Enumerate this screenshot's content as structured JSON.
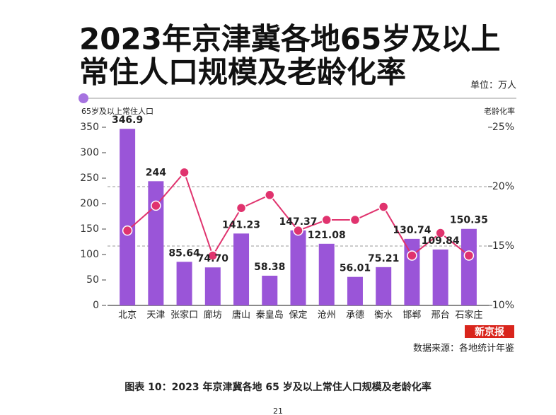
{
  "chart_data": {
    "type": "bar-line",
    "title": [
      "2023年京津冀各地65岁及以上",
      "常住人口规模及老龄化率"
    ],
    "unit": "单位：万人",
    "ylabel": "65岁及以上常住人口",
    "y2label": "老龄化率",
    "categories": [
      "北京",
      "天津",
      "张家口",
      "廊坊",
      "唐山",
      "秦皇岛",
      "保定",
      "沧州",
      "承德",
      "衡水",
      "邯郸",
      "邢台",
      "石家庄"
    ],
    "series": [
      {
        "type": "bar",
        "color": "#9a55d8",
        "values": [
          346.9,
          244,
          85.64,
          74.7,
          141.23,
          58.38,
          147.37,
          121.08,
          56.01,
          75.21,
          130.74,
          109.84,
          150.35
        ],
        "value_labels": [
          "346.9",
          "244",
          "85.64",
          "74.70",
          "141.23",
          "58.38",
          "147.37",
          "121.08",
          "56.01",
          "75.21",
          "130.74",
          "109.84",
          "150.35"
        ]
      },
      {
        "type": "line",
        "axis": "y2",
        "color": "#e0336e",
        "values": [
          16.3,
          18.4,
          21.2,
          14.2,
          18.2,
          19.3,
          16.3,
          17.2,
          17.2,
          18.3,
          14.2,
          16.1,
          14.2
        ]
      }
    ],
    "ylim": [
      0,
      350
    ],
    "yticks": [
      0,
      50,
      100,
      150,
      200,
      250,
      300,
      350
    ],
    "y2lim": [
      10,
      25
    ],
    "y2ticks": [
      {
        "value": 10,
        "label": "10%"
      },
      {
        "value": 15,
        "label": "15%"
      },
      {
        "value": 20,
        "label": "20%"
      },
      {
        "value": 25,
        "label": "25%"
      }
    ],
    "grid": "y2-dashed",
    "logo": "新京报",
    "source": "数据来源：各地统计年鉴",
    "caption": "图表 10：2023 年京津冀各地 65 岁及以上常住人口规模及老龄化率",
    "page_number": "21"
  }
}
